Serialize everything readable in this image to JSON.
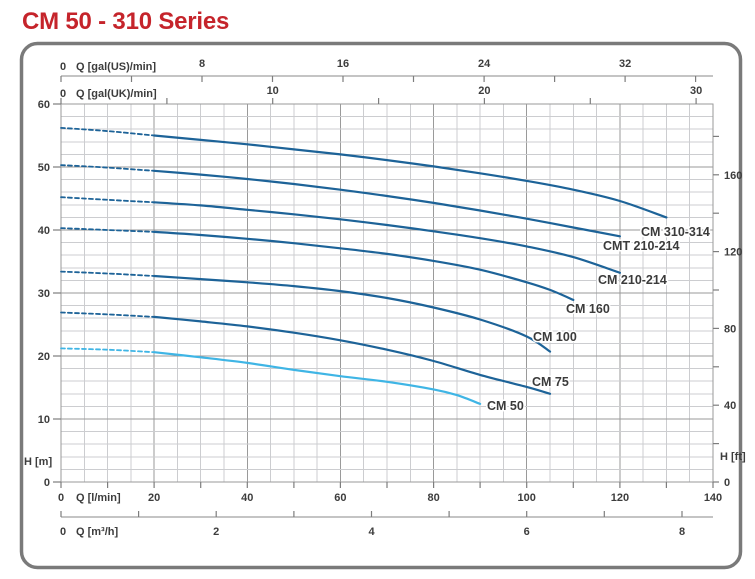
{
  "title": "CM 50 - 310 Series",
  "colors": {
    "title_red": "#c5242b",
    "curve": "#1d6398",
    "curve_light": "#3fb5e5",
    "grid_minor": "#cccdd0",
    "grid_major": "#9a9a9a",
    "axis_text": "#3d3d3d",
    "card_border": "#7a7a7a"
  },
  "chart_data": {
    "type": "line",
    "title": "CM 50 - 310 Series",
    "grid": true,
    "legend_position": "end-of-curve-labels",
    "x_primary": {
      "label": "Q [l/min]",
      "range": [
        0,
        140
      ],
      "major_ticks": [
        0,
        20,
        40,
        60,
        80,
        100,
        120,
        140
      ],
      "minor_step": 10
    },
    "x_secondary": [
      {
        "id": "gal_us",
        "label": "Q [gal(US)/min]",
        "lpm_per_unit": 3.785,
        "major_ticks": [
          0,
          8,
          16,
          24,
          32
        ],
        "minor_step": 4,
        "position": "top-outer"
      },
      {
        "id": "gal_uk",
        "label": "Q [gal(UK)/min]",
        "lpm_per_unit": 4.546,
        "major_ticks": [
          0,
          10,
          20,
          30
        ],
        "minor_step": 5,
        "position": "top-inner"
      },
      {
        "id": "m3_h",
        "label": "Q [m³/h]",
        "lpm_per_unit": 16.667,
        "major_ticks": [
          0,
          2,
          4,
          6,
          8
        ],
        "minor_step": 1,
        "position": "bottom-outer"
      }
    ],
    "y_primary": {
      "label": "H [m]",
      "range": [
        0,
        60
      ],
      "major_step": 10,
      "minor_step": 2
    },
    "y_secondary": {
      "label": "H [ft]",
      "m_per_unit": 0.3048,
      "major_ticks": [
        0,
        40,
        80,
        120,
        160
      ],
      "minor_step": 20
    },
    "dash_until_lpm": 20,
    "series": [
      {
        "name": "CM 310-314",
        "color_key": "curve",
        "points": [
          [
            0,
            56.2
          ],
          [
            10,
            55.7
          ],
          [
            20,
            55.0
          ],
          [
            30,
            54.3
          ],
          [
            40,
            53.6
          ],
          [
            50,
            52.8
          ],
          [
            60,
            52.0
          ],
          [
            70,
            51.1
          ],
          [
            80,
            50.1
          ],
          [
            90,
            49.0
          ],
          [
            100,
            47.8
          ],
          [
            110,
            46.4
          ],
          [
            120,
            44.6
          ],
          [
            130,
            42.0
          ]
        ],
        "label_xy": [
          641,
          236
        ]
      },
      {
        "name": "CMT 210-214",
        "color_key": "curve",
        "points": [
          [
            0,
            50.3
          ],
          [
            10,
            49.9
          ],
          [
            20,
            49.4
          ],
          [
            30,
            48.8
          ],
          [
            40,
            48.1
          ],
          [
            50,
            47.3
          ],
          [
            60,
            46.4
          ],
          [
            70,
            45.4
          ],
          [
            80,
            44.3
          ],
          [
            90,
            43.1
          ],
          [
            100,
            41.8
          ],
          [
            110,
            40.4
          ],
          [
            120,
            39.0
          ]
        ],
        "label_xy": [
          603,
          250
        ]
      },
      {
        "name": "CM 210-214",
        "color_key": "curve",
        "points": [
          [
            0,
            45.2
          ],
          [
            10,
            44.8
          ],
          [
            20,
            44.4
          ],
          [
            30,
            43.9
          ],
          [
            40,
            43.2
          ],
          [
            50,
            42.5
          ],
          [
            60,
            41.7
          ],
          [
            70,
            40.8
          ],
          [
            80,
            39.8
          ],
          [
            90,
            38.7
          ],
          [
            100,
            37.4
          ],
          [
            110,
            35.7
          ],
          [
            120,
            33.2
          ]
        ],
        "label_xy": [
          598,
          284
        ]
      },
      {
        "name": "CM 160",
        "color_key": "curve",
        "points": [
          [
            0,
            40.3
          ],
          [
            10,
            40.0
          ],
          [
            20,
            39.7
          ],
          [
            30,
            39.2
          ],
          [
            40,
            38.6
          ],
          [
            50,
            37.9
          ],
          [
            60,
            37.1
          ],
          [
            70,
            36.2
          ],
          [
            80,
            35.1
          ],
          [
            90,
            33.7
          ],
          [
            100,
            31.7
          ],
          [
            105,
            30.5
          ],
          [
            110,
            28.9
          ]
        ],
        "label_xy": [
          566,
          313
        ]
      },
      {
        "name": "CM 100",
        "color_key": "curve",
        "points": [
          [
            0,
            33.4
          ],
          [
            10,
            33.1
          ],
          [
            20,
            32.7
          ],
          [
            30,
            32.2
          ],
          [
            40,
            31.7
          ],
          [
            50,
            31.1
          ],
          [
            60,
            30.3
          ],
          [
            70,
            29.2
          ],
          [
            80,
            27.7
          ],
          [
            90,
            25.8
          ],
          [
            100,
            23.1
          ],
          [
            105,
            20.7
          ]
        ],
        "label_xy": [
          533,
          341
        ]
      },
      {
        "name": "CM 75",
        "color_key": "curve",
        "points": [
          [
            0,
            26.9
          ],
          [
            10,
            26.6
          ],
          [
            20,
            26.2
          ],
          [
            30,
            25.5
          ],
          [
            40,
            24.7
          ],
          [
            50,
            23.7
          ],
          [
            60,
            22.5
          ],
          [
            70,
            21.0
          ],
          [
            80,
            19.2
          ],
          [
            90,
            17.0
          ],
          [
            100,
            15.1
          ],
          [
            105,
            14.0
          ]
        ],
        "label_xy": [
          532,
          386
        ]
      },
      {
        "name": "CM 50",
        "color_key": "curve_light",
        "points": [
          [
            0,
            21.2
          ],
          [
            10,
            21.0
          ],
          [
            20,
            20.6
          ],
          [
            30,
            19.8
          ],
          [
            40,
            18.9
          ],
          [
            50,
            17.8
          ],
          [
            60,
            16.8
          ],
          [
            70,
            15.9
          ],
          [
            80,
            14.7
          ],
          [
            85,
            13.8
          ],
          [
            90,
            12.4
          ]
        ],
        "label_xy": [
          487,
          410
        ]
      }
    ]
  }
}
